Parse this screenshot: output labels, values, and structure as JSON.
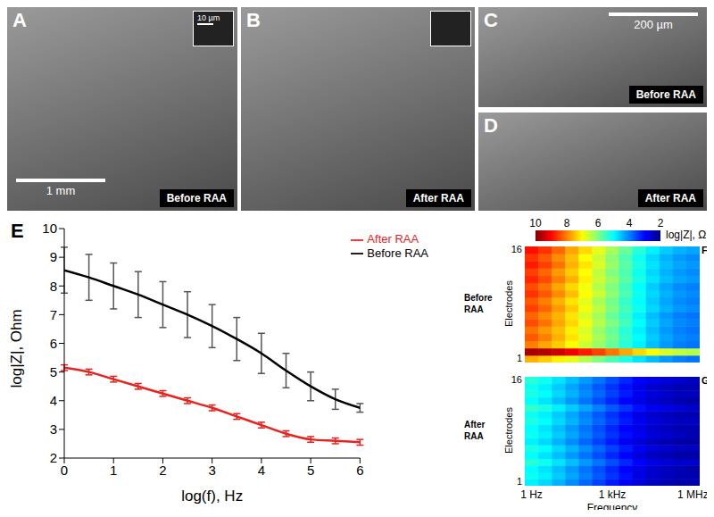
{
  "panels": [
    {
      "label": "A",
      "caption": "Before RAA",
      "scale_bar": "1 mm",
      "inset_scale_bar": "10 µm"
    },
    {
      "label": "B",
      "caption": "After RAA"
    },
    {
      "label": "C",
      "caption": "Before RAA",
      "scale_bar": "200 µm"
    },
    {
      "label": "D",
      "caption": "After RAA"
    }
  ],
  "colorbar": {
    "label": "log|Z|, Ω",
    "range": [
      2,
      10
    ],
    "ticks": [
      10,
      8,
      6,
      4,
      2
    ]
  },
  "chart_data": [
    {
      "type": "line",
      "panel": "E",
      "x_label": "log(f), Hz",
      "y_label": "log|Z|, Ohm",
      "x": [
        0,
        0.5,
        1,
        1.5,
        2,
        2.5,
        3,
        3.5,
        4,
        4.5,
        5,
        5.5,
        6
      ],
      "xlim": [
        0,
        6
      ],
      "xticks": [
        0,
        1,
        2,
        3,
        4,
        5,
        6
      ],
      "ylim": [
        2,
        10
      ],
      "yticks": [
        2,
        3,
        4,
        5,
        6,
        7,
        8,
        9,
        10
      ],
      "legend": "upper right",
      "series": [
        {
          "name": "Before RAA",
          "color": "#000000",
          "values": [
            8.55,
            8.3,
            8.0,
            7.7,
            7.35,
            7.0,
            6.6,
            6.15,
            5.65,
            5.05,
            4.5,
            4.05,
            3.75
          ],
          "errors": [
            0.8,
            0.8,
            0.8,
            0.8,
            0.8,
            0.8,
            0.75,
            0.75,
            0.7,
            0.6,
            0.5,
            0.35,
            0.15
          ]
        },
        {
          "name": "After RAA",
          "color": "#e8231f",
          "values": [
            5.15,
            5.0,
            4.75,
            4.5,
            4.25,
            4.0,
            3.75,
            3.45,
            3.15,
            2.85,
            2.65,
            2.6,
            2.55
          ],
          "errors": [
            0.1,
            0.1,
            0.1,
            0.1,
            0.1,
            0.1,
            0.1,
            0.1,
            0.1,
            0.1,
            0.1,
            0.1,
            0.1
          ]
        }
      ]
    },
    {
      "type": "heatmap",
      "panel": "F",
      "side_label": "Before RAA",
      "y_label": "Electrodes",
      "tick_labels": "y",
      "x": [
        0,
        0.5,
        1,
        1.5,
        2,
        2.5,
        3,
        3.5,
        4,
        4.5,
        5,
        5.5,
        6
      ],
      "rows": [
        1,
        2,
        3,
        4,
        5,
        6,
        7,
        8,
        9,
        10,
        11,
        12,
        13,
        14,
        15,
        16
      ],
      "yticks": [
        1,
        16
      ],
      "cells": [
        [
          7.6,
          7.4,
          7.1,
          6.8,
          6.4,
          6.0,
          5.6,
          5.2,
          4.8,
          4.5,
          4.2,
          4.0,
          3.9
        ],
        [
          9.7,
          9.6,
          9.4,
          9.1,
          8.8,
          8.5,
          8.1,
          7.7,
          7.3,
          7.0,
          6.7,
          6.5,
          6.4
        ],
        [
          8.0,
          7.7,
          7.4,
          7.0,
          6.6,
          6.2,
          5.8,
          5.3,
          4.9,
          4.5,
          4.2,
          4.0,
          3.9
        ],
        [
          8.3,
          8.0,
          7.6,
          7.2,
          6.8,
          6.3,
          5.9,
          5.4,
          5.0,
          4.6,
          4.3,
          4.1,
          4.0
        ],
        [
          8.1,
          7.8,
          7.5,
          7.1,
          6.7,
          6.2,
          5.8,
          5.3,
          4.9,
          4.5,
          4.2,
          4.0,
          3.9
        ],
        [
          8.4,
          8.1,
          7.7,
          7.3,
          6.9,
          6.4,
          6.0,
          5.5,
          5.0,
          4.6,
          4.3,
          4.1,
          4.0
        ],
        [
          8.2,
          7.9,
          7.6,
          7.2,
          6.7,
          6.3,
          5.8,
          5.4,
          4.9,
          4.5,
          4.2,
          4.0,
          3.9
        ],
        [
          8.5,
          8.2,
          7.8,
          7.4,
          6.9,
          6.5,
          6.0,
          5.5,
          5.1,
          4.7,
          4.4,
          4.2,
          4.1
        ],
        [
          8.3,
          8.0,
          7.6,
          7.2,
          6.8,
          6.3,
          5.9,
          5.4,
          5.0,
          4.6,
          4.3,
          4.1,
          4.0
        ],
        [
          8.6,
          8.3,
          7.9,
          7.5,
          7.0,
          6.6,
          6.1,
          5.6,
          5.1,
          4.7,
          4.4,
          4.2,
          4.1
        ],
        [
          8.4,
          8.1,
          7.7,
          7.3,
          6.9,
          6.4,
          6.0,
          5.5,
          5.0,
          4.6,
          4.3,
          4.1,
          4.0
        ],
        [
          8.7,
          8.4,
          8.0,
          7.6,
          7.1,
          6.6,
          6.2,
          5.7,
          5.2,
          4.8,
          4.5,
          4.3,
          4.2
        ],
        [
          8.5,
          8.2,
          7.8,
          7.4,
          7.0,
          6.5,
          6.0,
          5.6,
          5.1,
          4.7,
          4.4,
          4.2,
          4.1
        ],
        [
          8.8,
          8.5,
          8.1,
          7.6,
          7.2,
          6.7,
          6.2,
          5.7,
          5.2,
          4.8,
          4.5,
          4.3,
          4.2
        ],
        [
          8.6,
          8.3,
          7.9,
          7.5,
          7.0,
          6.6,
          6.1,
          5.6,
          5.1,
          4.7,
          4.4,
          4.2,
          4.1
        ],
        [
          8.9,
          8.6,
          8.2,
          7.7,
          7.3,
          6.8,
          6.3,
          5.8,
          5.3,
          4.9,
          4.6,
          4.4,
          4.3
        ]
      ]
    },
    {
      "type": "heatmap",
      "panel": "G",
      "side_label": "After RAA",
      "y_label": "Electrodes",
      "x_label": "Frequency",
      "x": [
        0,
        0.5,
        1,
        1.5,
        2,
        2.5,
        3,
        3.5,
        4,
        4.5,
        5,
        5.5,
        6
      ],
      "xticks": [
        {
          "value": 0,
          "label": "1 Hz"
        },
        {
          "value": 3,
          "label": "1 kHz"
        },
        {
          "value": 6,
          "label": "1 MHz"
        }
      ],
      "rows": [
        1,
        2,
        3,
        4,
        5,
        6,
        7,
        8,
        9,
        10,
        11,
        12,
        13,
        14,
        15,
        16
      ],
      "yticks": [
        1,
        16
      ],
      "cells": [
        [
          4.9,
          4.7,
          4.4,
          4.1,
          3.8,
          3.5,
          3.2,
          2.9,
          2.7,
          2.5,
          2.4,
          2.3,
          2.3
        ],
        [
          5.1,
          4.9,
          4.6,
          4.3,
          4.0,
          3.7,
          3.4,
          3.1,
          2.8,
          2.6,
          2.5,
          2.4,
          2.4
        ],
        [
          5.0,
          4.8,
          4.5,
          4.2,
          3.9,
          3.6,
          3.3,
          3.0,
          2.8,
          2.6,
          2.5,
          2.4,
          2.3
        ],
        [
          5.3,
          5.1,
          4.8,
          4.5,
          4.2,
          3.9,
          3.6,
          3.3,
          3.0,
          2.8,
          2.7,
          2.6,
          2.6
        ],
        [
          5.0,
          4.8,
          4.5,
          4.2,
          3.9,
          3.6,
          3.3,
          3.0,
          2.7,
          2.5,
          2.4,
          2.3,
          2.3
        ],
        [
          5.2,
          5.0,
          4.7,
          4.4,
          4.1,
          3.8,
          3.5,
          3.2,
          2.9,
          2.7,
          2.6,
          2.5,
          2.5
        ],
        [
          4.9,
          4.7,
          4.4,
          4.1,
          3.8,
          3.5,
          3.2,
          2.9,
          2.7,
          2.5,
          2.4,
          2.3,
          2.3
        ],
        [
          5.1,
          4.9,
          4.6,
          4.3,
          4.0,
          3.7,
          3.4,
          3.1,
          2.9,
          2.7,
          2.6,
          2.5,
          2.4
        ],
        [
          5.0,
          4.8,
          4.5,
          4.2,
          3.9,
          3.6,
          3.3,
          3.0,
          2.8,
          2.6,
          2.5,
          2.4,
          2.4
        ],
        [
          5.2,
          5.0,
          4.7,
          4.4,
          4.1,
          3.8,
          3.5,
          3.2,
          2.9,
          2.7,
          2.6,
          2.5,
          2.5
        ],
        [
          5.1,
          4.9,
          4.6,
          4.3,
          4.0,
          3.7,
          3.4,
          3.1,
          2.8,
          2.6,
          2.5,
          2.4,
          2.4
        ],
        [
          5.4,
          5.2,
          4.9,
          4.6,
          4.3,
          4.0,
          3.7,
          3.4,
          3.1,
          2.9,
          2.8,
          2.7,
          2.6
        ],
        [
          5.0,
          4.8,
          4.5,
          4.2,
          3.9,
          3.6,
          3.3,
          3.0,
          2.8,
          2.6,
          2.5,
          2.4,
          2.3
        ],
        [
          5.2,
          5.0,
          4.7,
          4.4,
          4.1,
          3.8,
          3.5,
          3.2,
          2.9,
          2.7,
          2.6,
          2.5,
          2.5
        ],
        [
          5.1,
          4.9,
          4.6,
          4.3,
          4.0,
          3.7,
          3.4,
          3.1,
          2.8,
          2.6,
          2.5,
          2.4,
          2.4
        ],
        [
          5.3,
          5.1,
          4.8,
          4.5,
          4.2,
          3.9,
          3.6,
          3.3,
          3.0,
          2.8,
          2.7,
          2.6,
          2.5
        ]
      ]
    }
  ]
}
